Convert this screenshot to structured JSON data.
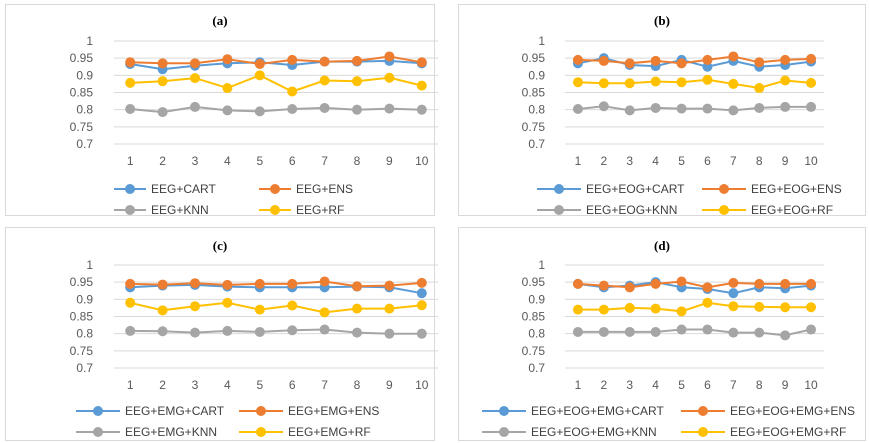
{
  "chart_data": [
    {
      "panel": "(a)",
      "type": "line",
      "title": "(a)",
      "categories": [
        "1",
        "2",
        "3",
        "4",
        "5",
        "6",
        "7",
        "8",
        "9",
        "10"
      ],
      "y_ticks": [
        "1",
        "0.95",
        "0.9",
        "0.85",
        "0.8",
        "0.75",
        "0.7"
      ],
      "ylim": [
        0.7,
        1.0
      ],
      "grid": true,
      "legend_position": "bottom",
      "series": [
        {
          "name": "EEG+CART",
          "color": "#5B9BD5",
          "values": [
            0.933,
            0.918,
            0.928,
            0.935,
            0.938,
            0.93,
            0.94,
            0.94,
            0.942,
            0.935
          ]
        },
        {
          "name": "EEG+ENS",
          "color": "#ED7D31",
          "values": [
            0.938,
            0.935,
            0.935,
            0.947,
            0.933,
            0.945,
            0.94,
            0.942,
            0.955,
            0.938
          ]
        },
        {
          "name": "EEG+KNN",
          "color": "#A5A5A5",
          "values": [
            0.802,
            0.793,
            0.808,
            0.798,
            0.795,
            0.802,
            0.805,
            0.8,
            0.803,
            0.8
          ]
        },
        {
          "name": "EEG+RF",
          "color": "#FFC000",
          "values": [
            0.878,
            0.883,
            0.892,
            0.863,
            0.9,
            0.853,
            0.885,
            0.883,
            0.893,
            0.87
          ]
        }
      ]
    },
    {
      "panel": "(b)",
      "type": "line",
      "title": "(b)",
      "categories": [
        "1",
        "2",
        "3",
        "4",
        "5",
        "6",
        "7",
        "8",
        "9",
        "10"
      ],
      "y_ticks": [
        "1",
        "0.95",
        "0.9",
        "0.85",
        "0.8",
        "0.75",
        "0.7"
      ],
      "ylim": [
        0.7,
        1.0
      ],
      "grid": true,
      "legend_position": "bottom",
      "series": [
        {
          "name": "EEG+EOG+CART",
          "color": "#5B9BD5",
          "values": [
            0.935,
            0.95,
            0.93,
            0.927,
            0.945,
            0.925,
            0.942,
            0.925,
            0.93,
            0.94
          ]
        },
        {
          "name": "EEG+EOG+ENS",
          "color": "#ED7D31",
          "values": [
            0.945,
            0.942,
            0.935,
            0.942,
            0.935,
            0.945,
            0.955,
            0.938,
            0.945,
            0.948
          ]
        },
        {
          "name": "EEG+EOG+KNN",
          "color": "#A5A5A5",
          "values": [
            0.802,
            0.81,
            0.798,
            0.805,
            0.803,
            0.803,
            0.798,
            0.805,
            0.808,
            0.808
          ]
        },
        {
          "name": "EEG+EOG+RF",
          "color": "#FFC000",
          "values": [
            0.88,
            0.877,
            0.877,
            0.882,
            0.88,
            0.887,
            0.875,
            0.863,
            0.885,
            0.878
          ]
        }
      ]
    },
    {
      "panel": "(c)",
      "type": "line",
      "title": "(c)",
      "categories": [
        "1",
        "2",
        "3",
        "4",
        "5",
        "6",
        "7",
        "8",
        "9",
        "10"
      ],
      "y_ticks": [
        "1",
        "0.95",
        "0.9",
        "0.85",
        "0.8",
        "0.75",
        "0.7"
      ],
      "ylim": [
        0.7,
        1.0
      ],
      "grid": true,
      "legend_position": "bottom",
      "series": [
        {
          "name": "EEG+EMG+CART",
          "color": "#5B9BD5",
          "values": [
            0.935,
            0.94,
            0.942,
            0.937,
            0.935,
            0.935,
            0.935,
            0.937,
            0.935,
            0.918
          ]
        },
        {
          "name": "EEG+EMG+ENS",
          "color": "#ED7D31",
          "values": [
            0.945,
            0.943,
            0.947,
            0.942,
            0.945,
            0.945,
            0.952,
            0.938,
            0.94,
            0.948
          ]
        },
        {
          "name": "EEG+EMG+KNN",
          "color": "#A5A5A5",
          "values": [
            0.808,
            0.807,
            0.803,
            0.808,
            0.805,
            0.81,
            0.812,
            0.803,
            0.8,
            0.8
          ]
        },
        {
          "name": "EEG+EMG+RF",
          "color": "#FFC000",
          "values": [
            0.89,
            0.868,
            0.88,
            0.89,
            0.87,
            0.882,
            0.862,
            0.873,
            0.873,
            0.883
          ]
        }
      ]
    },
    {
      "panel": "(d)",
      "type": "line",
      "title": "(d)",
      "categories": [
        "1",
        "2",
        "3",
        "4",
        "5",
        "6",
        "7",
        "8",
        "9",
        "10"
      ],
      "y_ticks": [
        "1",
        "0.95",
        "0.9",
        "0.85",
        "0.8",
        "0.75",
        "0.7"
      ],
      "ylim": [
        0.7,
        1.0
      ],
      "grid": true,
      "legend_position": "bottom",
      "series": [
        {
          "name": "EEG+EOG+EMG+CART",
          "color": "#5B9BD5",
          "values": [
            0.945,
            0.935,
            0.94,
            0.95,
            0.935,
            0.93,
            0.918,
            0.935,
            0.932,
            0.94
          ]
        },
        {
          "name": "EEG+EOG+EMG+ENS",
          "color": "#ED7D31",
          "values": [
            0.945,
            0.94,
            0.935,
            0.945,
            0.952,
            0.935,
            0.948,
            0.945,
            0.945,
            0.945
          ]
        },
        {
          "name": "EEG+EOG+EMG+KNN",
          "color": "#A5A5A5",
          "values": [
            0.805,
            0.805,
            0.805,
            0.805,
            0.812,
            0.812,
            0.803,
            0.803,
            0.795,
            0.812
          ]
        },
        {
          "name": "EEG+EOG+EMG+RF",
          "color": "#FFC000",
          "values": [
            0.87,
            0.87,
            0.875,
            0.873,
            0.865,
            0.89,
            0.88,
            0.878,
            0.877,
            0.877
          ]
        }
      ]
    }
  ]
}
